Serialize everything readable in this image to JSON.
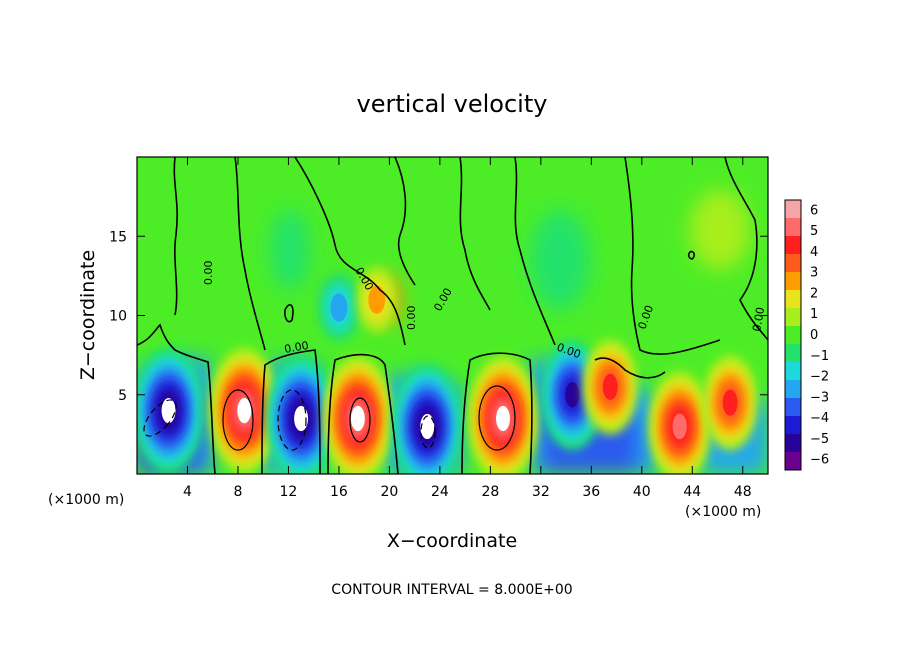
{
  "chart_data": {
    "type": "heatmap",
    "title": "vertical velocity",
    "xlabel": "X−coordinate",
    "ylabel": "Z−coordinate",
    "x_unit_left": "(×1000 m)",
    "x_unit_right": "(×1000 m)",
    "footer": "CONTOUR INTERVAL = 8.000E+00",
    "xlim": [
      0,
      50
    ],
    "ylim": [
      0,
      20
    ],
    "x_ticks": [
      4,
      8,
      12,
      16,
      20,
      24,
      28,
      32,
      36,
      40,
      44,
      48
    ],
    "y_ticks": [
      5,
      10,
      15
    ],
    "colorbar": {
      "labels": [
        "6",
        "5",
        "4",
        "3",
        "2",
        "1",
        "0",
        "−1",
        "−2",
        "−3",
        "−4",
        "−5",
        "−6"
      ],
      "colors": [
        "#f4a6a6",
        "#ff6a6a",
        "#ff1f1f",
        "#ff5a1a",
        "#ff9d00",
        "#e7e31d",
        "#a8ee1e",
        "#4ced27",
        "#23e26c",
        "#1ed9d9",
        "#24a6f0",
        "#2a5af0",
        "#1b1bd4",
        "#28009a",
        "#6a0090"
      ]
    },
    "contour_label": "0.00",
    "cells": [
      {
        "x": 2.5,
        "z": 4.0,
        "w": -6
      },
      {
        "x": 8.5,
        "z": 4.0,
        "w": 6
      },
      {
        "x": 13.0,
        "z": 3.5,
        "w": -6
      },
      {
        "x": 17.5,
        "z": 3.5,
        "w": 6
      },
      {
        "x": 23.0,
        "z": 3.0,
        "w": -6
      },
      {
        "x": 29.0,
        "z": 3.5,
        "w": 6
      },
      {
        "x": 34.5,
        "z": 5.0,
        "w": -5
      },
      {
        "x": 37.5,
        "z": 5.5,
        "w": 4
      },
      {
        "x": 43.0,
        "z": 3.0,
        "w": 5
      },
      {
        "x": 47.0,
        "z": 4.5,
        "w": 4
      },
      {
        "x": 16.0,
        "z": 10.5,
        "w": -2
      },
      {
        "x": 19.0,
        "z": 11.0,
        "w": 2
      }
    ]
  }
}
